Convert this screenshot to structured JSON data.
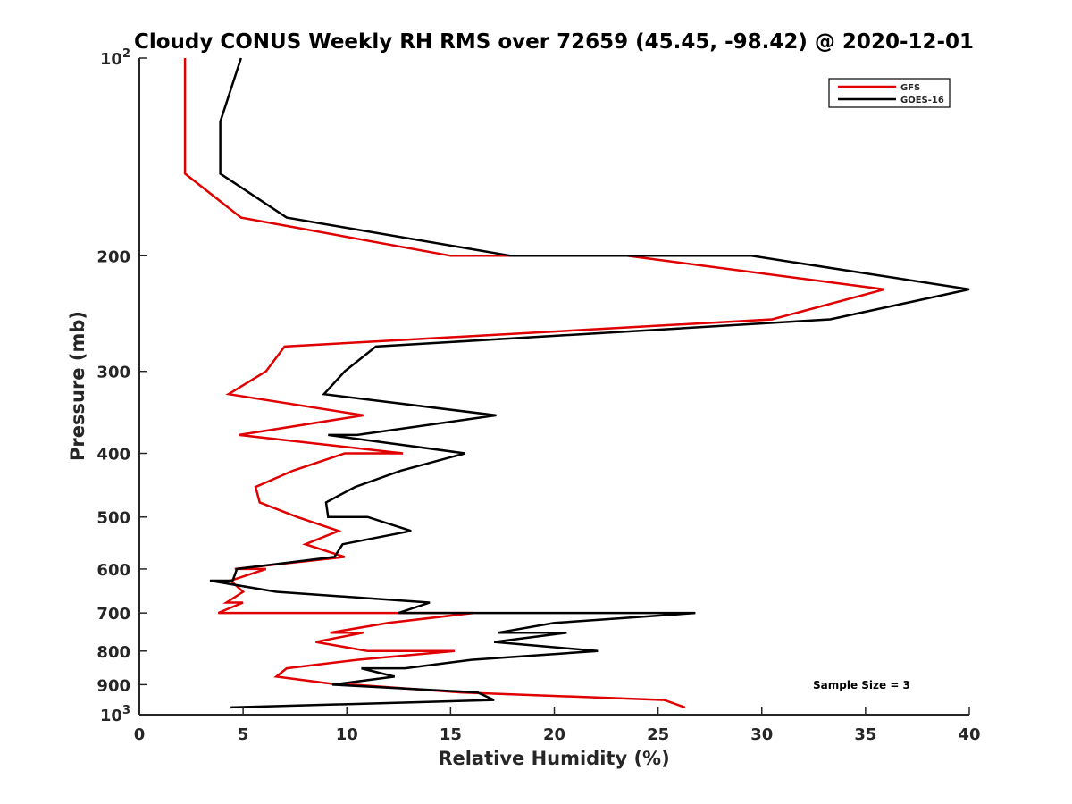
{
  "chart_data": {
    "type": "line",
    "title": "Cloudy CONUS Weekly RH RMS over 72659 (45.45, -98.42) @ 2020-12-01",
    "xlabel": "Relative Humidity (%)",
    "ylabel": "Pressure (mb)",
    "xlim": [
      0,
      40
    ],
    "ylim": [
      100,
      1000
    ],
    "y_scale": "log",
    "y_reversed": true,
    "x_ticks": [
      "0",
      "5",
      "10",
      "15",
      "20",
      "25",
      "30",
      "35",
      "40"
    ],
    "y_ticks": [
      {
        "value": 100,
        "base": "10",
        "exp": "2"
      },
      {
        "value": 200,
        "label": "200"
      },
      {
        "value": 300,
        "label": "300"
      },
      {
        "value": 400,
        "label": "400"
      },
      {
        "value": 500,
        "label": "500"
      },
      {
        "value": 600,
        "label": "600"
      },
      {
        "value": 700,
        "label": "700"
      },
      {
        "value": 800,
        "label": "800"
      },
      {
        "value": 900,
        "label": "900"
      },
      {
        "value": 1000,
        "base": "10",
        "exp": "3"
      }
    ],
    "grid": false,
    "legend_position": "top-right",
    "annotation": "Sample Size = 3",
    "series": [
      {
        "name": "GFS",
        "color": "#e00000",
        "points": [
          [
            2.2,
            100
          ],
          [
            2.2,
            125
          ],
          [
            2.2,
            150
          ],
          [
            4.9,
            175
          ],
          [
            15.0,
            200
          ],
          [
            23.5,
            200
          ],
          [
            35.9,
            225
          ],
          [
            30.5,
            250
          ],
          [
            7.0,
            275
          ],
          [
            6.1,
            300
          ],
          [
            4.3,
            325
          ],
          [
            10.8,
            350
          ],
          [
            4.8,
            375
          ],
          [
            12.7,
            400
          ],
          [
            9.9,
            400
          ],
          [
            7.4,
            425
          ],
          [
            5.6,
            450
          ],
          [
            5.8,
            475
          ],
          [
            7.6,
            500
          ],
          [
            9.6,
            525
          ],
          [
            8.0,
            550
          ],
          [
            9.9,
            575
          ],
          [
            4.6,
            600
          ],
          [
            6.1,
            600
          ],
          [
            4.4,
            625
          ],
          [
            5.0,
            650
          ],
          [
            4.2,
            675
          ],
          [
            5.0,
            675
          ],
          [
            3.8,
            700
          ],
          [
            16.1,
            700
          ],
          [
            12.0,
            725
          ],
          [
            9.2,
            750
          ],
          [
            10.8,
            750
          ],
          [
            8.5,
            775
          ],
          [
            11.0,
            800
          ],
          [
            15.2,
            800
          ],
          [
            10.5,
            825
          ],
          [
            7.1,
            850
          ],
          [
            6.6,
            875
          ],
          [
            9.6,
            900
          ],
          [
            10.3,
            900
          ],
          [
            15.5,
            925
          ],
          [
            25.3,
            950
          ],
          [
            26.3,
            975
          ]
        ]
      },
      {
        "name": "GOES-16",
        "color": "#000000",
        "points": [
          [
            4.9,
            100
          ],
          [
            3.9,
            125
          ],
          [
            3.9,
            150
          ],
          [
            7.1,
            175
          ],
          [
            17.9,
            200
          ],
          [
            29.5,
            200
          ],
          [
            40.0,
            225
          ],
          [
            33.3,
            250
          ],
          [
            11.4,
            275
          ],
          [
            9.9,
            300
          ],
          [
            8.9,
            325
          ],
          [
            17.2,
            350
          ],
          [
            10.5,
            375
          ],
          [
            9.1,
            375
          ],
          [
            15.7,
            400
          ],
          [
            12.6,
            425
          ],
          [
            10.4,
            450
          ],
          [
            9.0,
            475
          ],
          [
            9.1,
            500
          ],
          [
            11.0,
            500
          ],
          [
            13.1,
            525
          ],
          [
            9.8,
            550
          ],
          [
            9.4,
            575
          ],
          [
            4.7,
            600
          ],
          [
            4.5,
            625
          ],
          [
            3.4,
            625
          ],
          [
            6.6,
            650
          ],
          [
            14.0,
            675
          ],
          [
            12.5,
            700
          ],
          [
            26.8,
            700
          ],
          [
            20.0,
            725
          ],
          [
            17.3,
            750
          ],
          [
            20.6,
            750
          ],
          [
            17.1,
            775
          ],
          [
            22.1,
            800
          ],
          [
            16.0,
            825
          ],
          [
            12.8,
            850
          ],
          [
            10.7,
            850
          ],
          [
            12.3,
            875
          ],
          [
            9.3,
            900
          ],
          [
            16.3,
            925
          ],
          [
            17.1,
            950
          ],
          [
            4.4,
            975
          ]
        ]
      }
    ]
  }
}
